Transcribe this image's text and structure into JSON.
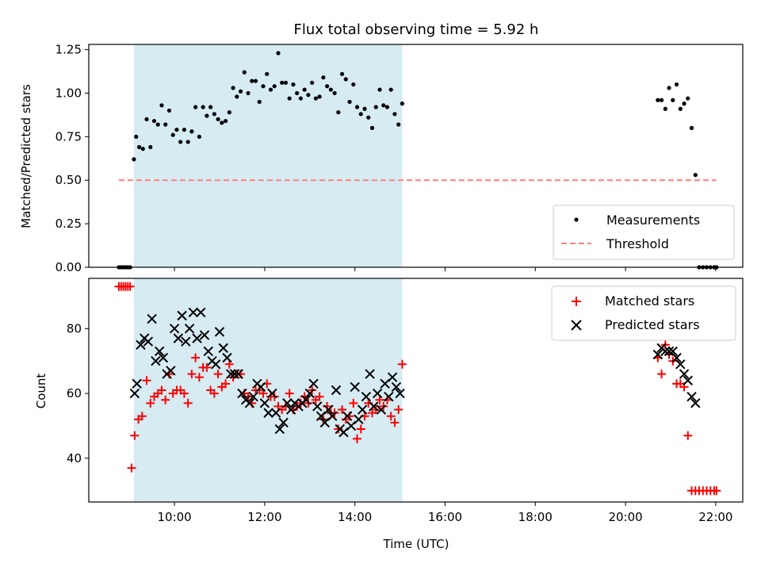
{
  "chart_data": [
    {
      "type": "scatter",
      "title": "Flux total observing time = 5.92 h",
      "ylabel": "Matched/Predicted stars",
      "xlabel": "",
      "ylim": [
        0,
        1.28
      ],
      "yticks": [
        {
          "value": 0.0,
          "label": "0.00"
        },
        {
          "value": 0.25,
          "label": "0.25"
        },
        {
          "value": 0.5,
          "label": "0.50"
        },
        {
          "value": 0.75,
          "label": "0.75"
        },
        {
          "value": 1.0,
          "label": "1.00"
        },
        {
          "value": 1.25,
          "label": "1.25"
        }
      ],
      "shaded_region": {
        "x": [
          "09:06",
          "15:03"
        ],
        "color": "#add8e6"
      },
      "legend_placement": "lower-right",
      "series": [
        {
          "name": "Measurements",
          "marker": "dot",
          "color": "#000000",
          "x": [
            "08:46",
            "08:49",
            "08:52",
            "08:55",
            "08:58",
            "09:01",
            "09:06",
            "09:09",
            "09:13",
            "09:18",
            "09:23",
            "09:28",
            "09:33",
            "09:38",
            "09:43",
            "09:48",
            "09:53",
            "09:58",
            "10:03",
            "10:08",
            "10:13",
            "10:18",
            "10:23",
            "10:28",
            "10:33",
            "10:38",
            "10:43",
            "10:48",
            "10:53",
            "10:58",
            "11:03",
            "11:08",
            "11:13",
            "11:18",
            "11:23",
            "11:28",
            "11:33",
            "11:38",
            "11:43",
            "11:48",
            "11:53",
            "11:58",
            "12:03",
            "12:08",
            "12:13",
            "12:18",
            "12:23",
            "12:28",
            "12:33",
            "12:38",
            "12:43",
            "12:48",
            "12:53",
            "12:58",
            "13:03",
            "13:08",
            "13:13",
            "13:18",
            "13:23",
            "13:28",
            "13:33",
            "13:38",
            "13:43",
            "13:48",
            "13:53",
            "13:58",
            "14:03",
            "14:08",
            "14:13",
            "14:18",
            "14:23",
            "14:28",
            "14:33",
            "14:38",
            "14:43",
            "14:48",
            "14:53",
            "14:58",
            "15:03",
            "20:43",
            "20:48",
            "20:53",
            "20:58",
            "21:03",
            "21:08",
            "21:13",
            "21:18",
            "21:23",
            "21:28",
            "21:33",
            "21:38",
            "21:43",
            "21:48",
            "21:53",
            "21:58",
            "22:01"
          ],
          "y": [
            0.0,
            0.0,
            0.0,
            0.0,
            0.0,
            0.0,
            0.62,
            0.75,
            0.69,
            0.68,
            0.85,
            0.69,
            0.84,
            0.82,
            0.93,
            0.82,
            0.9,
            0.76,
            0.79,
            0.72,
            0.79,
            0.72,
            0.78,
            0.92,
            0.75,
            0.92,
            0.87,
            0.92,
            0.88,
            0.85,
            0.83,
            0.84,
            0.89,
            1.03,
            0.98,
            1.01,
            1.12,
            1.0,
            1.07,
            1.07,
            0.95,
            1.04,
            1.11,
            1.02,
            1.04,
            1.23,
            1.06,
            1.06,
            0.97,
            1.05,
            1.0,
            0.97,
            1.02,
            0.99,
            1.06,
            0.97,
            0.98,
            1.09,
            1.04,
            1.02,
            1.0,
            0.89,
            1.11,
            1.08,
            0.95,
            1.05,
            0.92,
            0.88,
            0.91,
            0.86,
            0.8,
            0.92,
            1.02,
            0.93,
            0.92,
            1.02,
            0.88,
            0.82,
            0.94,
            0.96,
            0.96,
            0.91,
            1.03,
            0.96,
            1.05,
            0.91,
            0.94,
            0.97,
            0.8,
            0.53,
            0.0,
            0.0,
            0.0,
            0.0,
            0.0,
            0.0
          ]
        },
        {
          "name": "Threshold",
          "marker": "dashed-line",
          "color": "#ff7f7f",
          "x": [
            "08:46",
            "22:01"
          ],
          "y": [
            0.5,
            0.5
          ]
        }
      ]
    },
    {
      "type": "scatter",
      "title": "",
      "ylabel": "Count",
      "xlabel": "Time (UTC)",
      "ylim": [
        26.5,
        95.5
      ],
      "yticks": [
        {
          "value": 40,
          "label": "40"
        },
        {
          "value": 60,
          "label": "60"
        },
        {
          "value": 80,
          "label": "80"
        }
      ],
      "xlim": [
        "08:06",
        "22:36"
      ],
      "xticks": [
        {
          "value": "10:00",
          "label": "10:00"
        },
        {
          "value": "12:00",
          "label": "12:00"
        },
        {
          "value": "14:00",
          "label": "14:00"
        },
        {
          "value": "16:00",
          "label": "16:00"
        },
        {
          "value": "18:00",
          "label": "18:00"
        },
        {
          "value": "20:00",
          "label": "20:00"
        },
        {
          "value": "22:00",
          "label": "22:00"
        }
      ],
      "shaded_region": {
        "x": [
          "09:06",
          "15:03"
        ],
        "color": "#add8e6"
      },
      "legend_placement": "upper-right",
      "series": [
        {
          "name": "Matched stars",
          "marker": "plus",
          "color": "#ff0000",
          "x": [
            "08:46",
            "08:49",
            "08:52",
            "08:55",
            "08:58",
            "09:01",
            "09:03",
            "09:07",
            "09:12",
            "09:17",
            "09:23",
            "09:28",
            "09:33",
            "09:38",
            "09:43",
            "09:48",
            "09:53",
            "09:58",
            "10:03",
            "10:08",
            "10:13",
            "10:18",
            "10:23",
            "10:28",
            "10:33",
            "10:38",
            "10:43",
            "10:48",
            "10:53",
            "10:58",
            "11:03",
            "11:08",
            "11:13",
            "11:18",
            "11:23",
            "11:28",
            "11:33",
            "11:38",
            "11:43",
            "11:48",
            "11:53",
            "11:58",
            "12:03",
            "12:08",
            "12:13",
            "12:18",
            "12:23",
            "12:28",
            "12:33",
            "12:38",
            "12:43",
            "12:48",
            "12:53",
            "12:58",
            "13:03",
            "13:08",
            "13:13",
            "13:18",
            "13:23",
            "13:28",
            "13:33",
            "13:38",
            "13:43",
            "13:48",
            "13:53",
            "13:58",
            "14:03",
            "14:08",
            "14:13",
            "14:18",
            "14:23",
            "14:28",
            "14:33",
            "14:38",
            "14:43",
            "14:48",
            "14:53",
            "14:58",
            "15:03",
            "20:43",
            "20:48",
            "20:53",
            "20:58",
            "21:03",
            "21:08",
            "21:13",
            "21:18",
            "21:23",
            "21:28",
            "21:33",
            "21:38",
            "21:43",
            "21:48",
            "21:53",
            "21:58",
            "22:01"
          ],
          "y": [
            93,
            93,
            93,
            93,
            93,
            93,
            37,
            47,
            52,
            53,
            64,
            57,
            59,
            60,
            61,
            58,
            66,
            60,
            61,
            61,
            60,
            57,
            66,
            71,
            65,
            68,
            68,
            61,
            60,
            66,
            62,
            63,
            69,
            65,
            66,
            66,
            60,
            59,
            57,
            61,
            61,
            60,
            63,
            59,
            59,
            56,
            55,
            56,
            60,
            55,
            56,
            57,
            59,
            57,
            61,
            58,
            59,
            52,
            56,
            54,
            54,
            49,
            55,
            52,
            53,
            57,
            46,
            49,
            53,
            57,
            54,
            55,
            58,
            56,
            58,
            53,
            51,
            55,
            69,
            71,
            66,
            75,
            72,
            70,
            63,
            63,
            62,
            47,
            30,
            30,
            30,
            30,
            30,
            30,
            30,
            30
          ],
          "visible_note": ""
        },
        {
          "name": "Predicted stars",
          "marker": "x",
          "color": "#000000",
          "x": [
            "09:07",
            "09:10",
            "09:15",
            "09:20",
            "09:25",
            "09:30",
            "09:35",
            "09:40",
            "09:45",
            "09:50",
            "09:55",
            "10:00",
            "10:05",
            "10:10",
            "10:15",
            "10:20",
            "10:25",
            "10:30",
            "10:35",
            "10:40",
            "10:45",
            "10:50",
            "10:55",
            "11:00",
            "11:05",
            "11:10",
            "11:15",
            "11:20",
            "11:25",
            "11:30",
            "11:35",
            "11:40",
            "11:45",
            "11:50",
            "11:55",
            "12:00",
            "12:05",
            "12:10",
            "12:15",
            "12:20",
            "12:25",
            "12:30",
            "12:35",
            "12:40",
            "12:45",
            "12:50",
            "12:55",
            "13:00",
            "13:05",
            "13:10",
            "13:15",
            "13:20",
            "13:25",
            "13:30",
            "13:35",
            "13:40",
            "13:45",
            "13:50",
            "13:55",
            "14:00",
            "14:05",
            "14:10",
            "14:15",
            "14:20",
            "14:25",
            "14:30",
            "14:35",
            "14:40",
            "14:45",
            "14:50",
            "14:55",
            "15:00",
            "20:43",
            "20:48",
            "20:53",
            "20:58",
            "21:03",
            "21:08",
            "21:13",
            "21:18",
            "21:23",
            "21:28",
            "21:33"
          ],
          "y": [
            60,
            63,
            75,
            77,
            76,
            83,
            70,
            73,
            71,
            66,
            67,
            80,
            77,
            84,
            76,
            80,
            85,
            77,
            85,
            78,
            73,
            70,
            69,
            79,
            74,
            71,
            66,
            66,
            66,
            60,
            58,
            57,
            59,
            63,
            62,
            57,
            54,
            60,
            54,
            49,
            51,
            57,
            55,
            57,
            56,
            57,
            58,
            60,
            63,
            56,
            53,
            51,
            55,
            53,
            61,
            49,
            48,
            53,
            50,
            62,
            52,
            55,
            59,
            66,
            56,
            60,
            55,
            63,
            59,
            65,
            62,
            60,
            72,
            74,
            73,
            73,
            73,
            71,
            69,
            66,
            64,
            59,
            57
          ]
        }
      ]
    }
  ]
}
